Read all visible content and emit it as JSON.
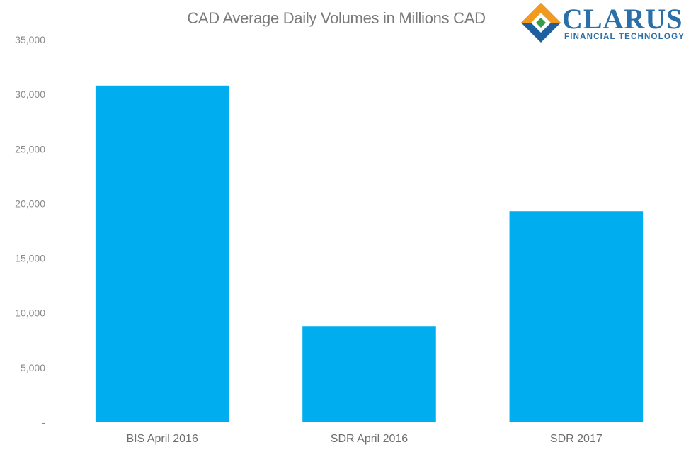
{
  "logo": {
    "word": "CLARUS",
    "subtitle": "FINANCIAL TECHNOLOGY",
    "colors": {
      "orange": "#f39a1e",
      "blue": "#1e5fa0",
      "green": "#3a9a4a",
      "text": "#2a6fa8"
    }
  },
  "chart_data": {
    "type": "bar",
    "title": "CAD Average Daily Volumes in Millions CAD",
    "categories": [
      "BIS April 2016",
      "SDR April 2016",
      "SDR 2017"
    ],
    "values": [
      30800,
      8800,
      19300
    ],
    "ylim": [
      0,
      35000
    ],
    "yticks": [
      0,
      5000,
      10000,
      15000,
      20000,
      25000,
      30000,
      35000
    ],
    "ytick_labels": [
      "-",
      "5,000",
      "10,000",
      "15,000",
      "20,000",
      "25,000",
      "30,000",
      "35,000"
    ],
    "xlabel": "",
    "ylabel": "",
    "grid": false,
    "legend": "none",
    "bar_color": "#00aeef"
  }
}
